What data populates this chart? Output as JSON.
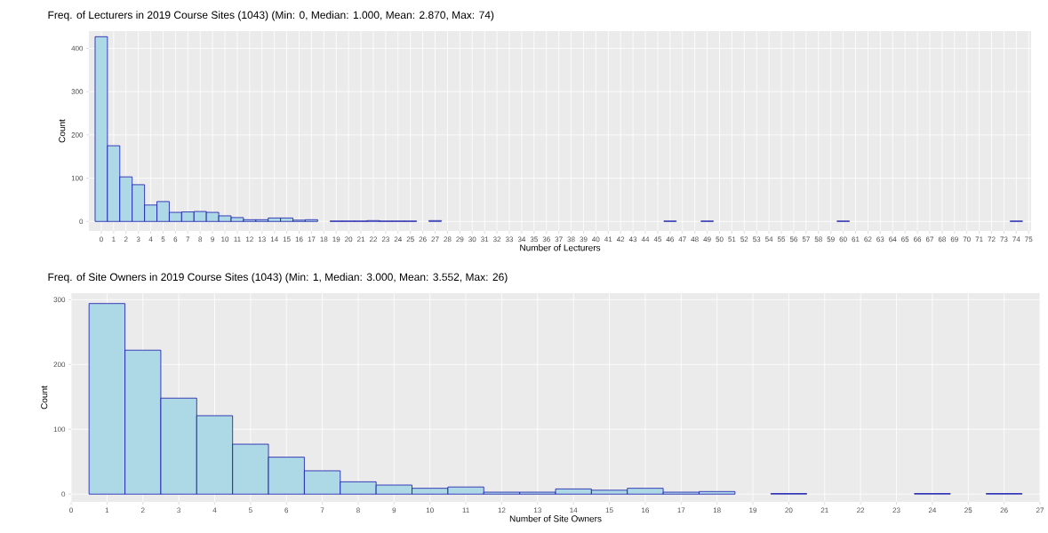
{
  "chart_data": [
    {
      "type": "histogram",
      "title": "Freq. of Lecturers in 2019 Course Sites (1043) (Min: 0, Median: 1.000, Mean: 2.870, Max: 74)",
      "xlabel": "Number of Lecturers",
      "ylabel": "Count",
      "color": "#add8e6",
      "grid": true,
      "bins": [
        -0.5,
        0.5,
        1.5,
        2.5,
        3.5,
        4.5,
        5.5,
        6.5,
        7.5,
        8.5,
        9.5,
        10.5,
        11.5,
        12.5,
        13.5,
        14.5,
        15.5,
        16.5,
        17.5,
        18.5,
        19.5,
        20.5,
        21.5,
        22.5,
        23.5,
        24.5,
        25.5,
        26.5,
        27.5,
        28.5,
        29.5,
        30.5,
        31.5,
        32.5,
        33.5,
        34.5,
        35.5,
        36.5,
        37.5,
        38.5,
        39.5,
        40.5,
        41.5,
        42.5,
        43.5,
        44.5,
        45.5,
        46.5,
        47.5,
        48.5,
        49.5,
        50.5,
        51.5,
        52.5,
        53.5,
        54.5,
        55.5,
        56.5,
        57.5,
        58.5,
        59.5,
        60.5,
        61.5,
        62.5,
        63.5,
        64.5,
        65.5,
        66.5,
        67.5,
        68.5,
        69.5,
        70.5,
        71.5,
        72.5,
        73.5,
        74.5
      ],
      "values": [
        427,
        175,
        103,
        85,
        38,
        46,
        21,
        22,
        23,
        21,
        13,
        9,
        4,
        4,
        8,
        8,
        3,
        4,
        0,
        1,
        1,
        1,
        2,
        1,
        1,
        1,
        0,
        2,
        0,
        0,
        0,
        0,
        0,
        0,
        0,
        0,
        0,
        0,
        0,
        0,
        0,
        0,
        0,
        0,
        0,
        0,
        1,
        0,
        0,
        1,
        0,
        0,
        0,
        0,
        0,
        0,
        0,
        0,
        0,
        0,
        1,
        0,
        0,
        0,
        0,
        0,
        0,
        0,
        0,
        0,
        0,
        0,
        0,
        0,
        1
      ],
      "xlim": [
        -1,
        75.2
      ],
      "ylim": [
        -22,
        440
      ],
      "xticks": [
        0,
        1,
        2,
        3,
        4,
        5,
        6,
        7,
        8,
        9,
        10,
        11,
        12,
        13,
        14,
        15,
        16,
        17,
        18,
        19,
        20,
        21,
        22,
        23,
        24,
        25,
        26,
        27,
        28,
        29,
        30,
        31,
        32,
        33,
        34,
        35,
        36,
        37,
        38,
        39,
        40,
        41,
        42,
        43,
        44,
        45,
        46,
        47,
        48,
        49,
        50,
        51,
        52,
        53,
        54,
        55,
        56,
        57,
        58,
        59,
        60,
        61,
        62,
        63,
        64,
        65,
        66,
        67,
        68,
        69,
        70,
        71,
        72,
        73,
        74,
        75
      ],
      "yticks": [
        0,
        100,
        200,
        300,
        400
      ]
    },
    {
      "type": "histogram",
      "title": "Freq. of Site Owners in 2019 Course Sites (1043) (Min: 1, Median: 3.000, Mean: 3.552, Max: 26)",
      "xlabel": "Number of Site Owners",
      "ylabel": "Count",
      "color": "#add8e6",
      "grid": true,
      "bins": [
        0.5,
        1.5,
        2.5,
        3.5,
        4.5,
        5.5,
        6.5,
        7.5,
        8.5,
        9.5,
        10.5,
        11.5,
        12.5,
        13.5,
        14.5,
        15.5,
        16.5,
        17.5,
        18.5,
        19.5,
        20.5,
        21.5,
        22.5,
        23.5,
        24.5,
        25.5,
        26.5
      ],
      "values": [
        294,
        222,
        148,
        121,
        77,
        57,
        36,
        19,
        14,
        9,
        11,
        3,
        3,
        8,
        6,
        9,
        3,
        4,
        0,
        1,
        0,
        0,
        0,
        1,
        0,
        1
      ],
      "xlim": [
        0,
        27
      ],
      "ylim": [
        -12,
        310
      ],
      "xticks": [
        0,
        1,
        2,
        3,
        4,
        5,
        6,
        7,
        8,
        9,
        10,
        11,
        12,
        13,
        14,
        15,
        16,
        17,
        18,
        19,
        20,
        21,
        22,
        23,
        24,
        25,
        26,
        27
      ],
      "yticks": [
        0,
        100,
        200,
        300
      ]
    }
  ]
}
